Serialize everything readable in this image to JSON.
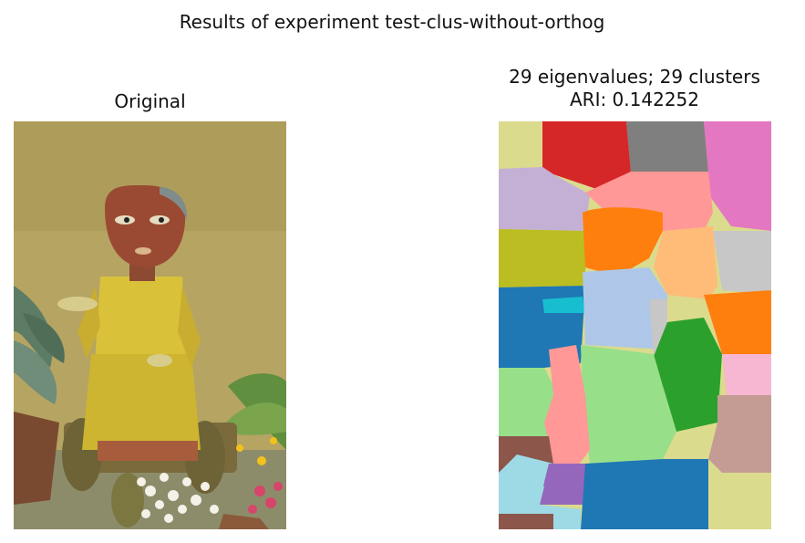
{
  "figure": {
    "suptitle": "Results of experiment test-clus-without-orthog",
    "left_panel": {
      "title": "Original"
    },
    "right_panel": {
      "title_line1": "29 eigenvalues; 29 clusters",
      "title_line2": "ARI: 0.142252"
    }
  },
  "colors": {
    "wall": "#b3a060",
    "statue_body": "#d9c23a",
    "statue_head": "#9a4a33",
    "cluster_palette": [
      "#d62728",
      "#7f7f7f",
      "#e377c2",
      "#dbdb8d",
      "#c5b0d5",
      "#ff9896",
      "#ff7f0e",
      "#bcbd22",
      "#ffbb78",
      "#c7c7c7",
      "#1f77b4",
      "#aec7e8",
      "#17becf",
      "#98df8a",
      "#2ca02c",
      "#f7b6d2",
      "#c49c94",
      "#8c564b",
      "#9edae5",
      "#9467bd"
    ]
  }
}
